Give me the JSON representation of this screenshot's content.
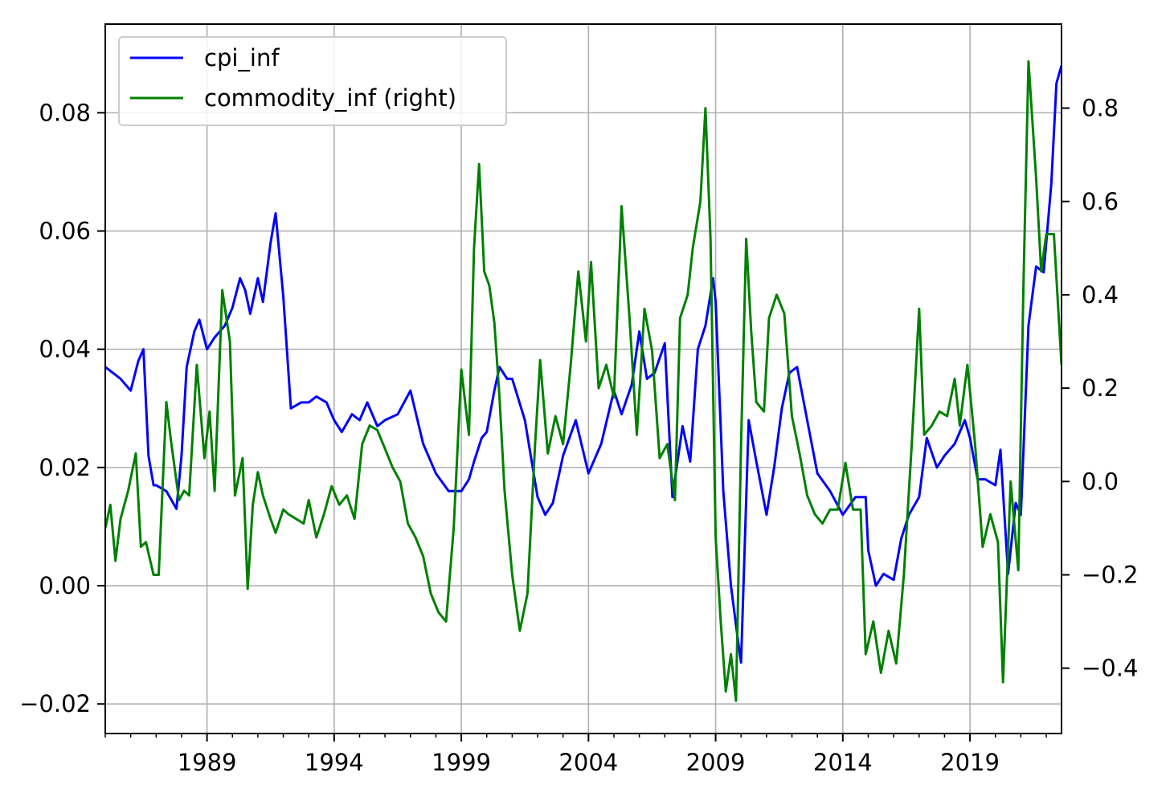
{
  "chart_data": {
    "type": "line",
    "title": "",
    "xlabel": "",
    "ylabel": "",
    "y2label": "",
    "xlim": [
      1985.0,
      2022.6
    ],
    "ylim": [
      -0.025,
      0.095
    ],
    "y2lim": [
      -0.54,
      0.98
    ],
    "x_ticks": [
      1989,
      1994,
      1999,
      2004,
      2009,
      2014,
      2019
    ],
    "x_tick_labels": [
      "1989",
      "1994",
      "1999",
      "2004",
      "2009",
      "2014",
      "2019"
    ],
    "y_ticks": [
      -0.02,
      0.0,
      0.02,
      0.04,
      0.06,
      0.08
    ],
    "y_tick_labels": [
      "−0.02",
      "0.00",
      "0.02",
      "0.04",
      "0.06",
      "0.08"
    ],
    "y2_ticks": [
      -0.4,
      -0.2,
      0.0,
      0.2,
      0.4,
      0.6,
      0.8
    ],
    "y2_tick_labels": [
      "−0.4",
      "−0.2",
      "0.0",
      "0.2",
      "0.4",
      "0.6",
      "0.8"
    ],
    "grid": true,
    "legend_position": "top-left",
    "series": [
      {
        "name": "cpi_inf",
        "axis": "left",
        "color": "#0000ff",
        "x": [
          1985.0,
          1985.3,
          1985.6,
          1986.0,
          1986.3,
          1986.5,
          1986.7,
          1986.9,
          1987.0,
          1987.4,
          1987.8,
          1988.0,
          1988.2,
          1988.5,
          1988.7,
          1989.0,
          1989.3,
          1989.7,
          1990.0,
          1990.3,
          1990.5,
          1990.7,
          1991.0,
          1991.2,
          1991.5,
          1991.7,
          1992.0,
          1992.3,
          1992.7,
          1993.0,
          1993.3,
          1993.7,
          1994.0,
          1994.3,
          1994.7,
          1995.0,
          1995.3,
          1995.7,
          1996.0,
          1996.5,
          1997.0,
          1997.5,
          1998.0,
          1998.5,
          1999.0,
          1999.3,
          1999.5,
          1999.8,
          2000.0,
          2000.3,
          2000.5,
          2000.8,
          2001.0,
          2001.5,
          2002.0,
          2002.3,
          2002.6,
          2003.0,
          2003.5,
          2004.0,
          2004.5,
          2005.0,
          2005.3,
          2005.7,
          2006.0,
          2006.3,
          2006.6,
          2007.0,
          2007.3,
          2007.7,
          2008.0,
          2008.3,
          2008.6,
          2008.9,
          2009.0,
          2009.3,
          2009.6,
          2009.9,
          2010.0,
          2010.3,
          2010.6,
          2011.0,
          2011.3,
          2011.6,
          2011.9,
          2012.2,
          2012.6,
          2013.0,
          2013.5,
          2014.0,
          2014.5,
          2014.9,
          2015.0,
          2015.3,
          2015.6,
          2016.0,
          2016.3,
          2016.6,
          2017.0,
          2017.3,
          2017.7,
          2018.0,
          2018.4,
          2018.8,
          2019.0,
          2019.3,
          2019.6,
          2020.0,
          2020.2,
          2020.5,
          2020.8,
          2021.0,
          2021.3,
          2021.6,
          2021.9,
          2022.2,
          2022.4,
          2022.6
        ],
        "values": [
          0.037,
          0.036,
          0.035,
          0.033,
          0.038,
          0.04,
          0.022,
          0.017,
          0.017,
          0.016,
          0.013,
          0.022,
          0.037,
          0.043,
          0.045,
          0.04,
          0.042,
          0.044,
          0.047,
          0.052,
          0.05,
          0.046,
          0.052,
          0.048,
          0.058,
          0.063,
          0.049,
          0.03,
          0.031,
          0.031,
          0.032,
          0.031,
          0.028,
          0.026,
          0.029,
          0.028,
          0.031,
          0.027,
          0.028,
          0.029,
          0.033,
          0.024,
          0.019,
          0.016,
          0.016,
          0.018,
          0.021,
          0.025,
          0.026,
          0.033,
          0.037,
          0.035,
          0.035,
          0.028,
          0.015,
          0.012,
          0.014,
          0.022,
          0.028,
          0.019,
          0.024,
          0.033,
          0.029,
          0.034,
          0.043,
          0.035,
          0.036,
          0.041,
          0.015,
          0.027,
          0.021,
          0.04,
          0.044,
          0.052,
          0.048,
          0.016,
          0.0,
          -0.01,
          -0.013,
          0.028,
          0.021,
          0.012,
          0.02,
          0.03,
          0.036,
          0.037,
          0.028,
          0.019,
          0.016,
          0.012,
          0.015,
          0.015,
          0.006,
          0.0,
          0.002,
          0.001,
          0.008,
          0.012,
          0.015,
          0.025,
          0.02,
          0.022,
          0.024,
          0.028,
          0.025,
          0.018,
          0.018,
          0.017,
          0.023,
          0.002,
          0.014,
          0.012,
          0.044,
          0.054,
          0.053,
          0.068,
          0.085,
          0.088
        ]
      },
      {
        "name": "commodity_inf",
        "axis": "right",
        "color": "#008000",
        "x": [
          1985.0,
          1985.2,
          1985.4,
          1985.6,
          1985.9,
          1986.2,
          1986.4,
          1986.6,
          1986.9,
          1987.1,
          1987.4,
          1987.6,
          1987.9,
          1988.1,
          1988.3,
          1988.6,
          1988.9,
          1989.1,
          1989.3,
          1989.6,
          1989.9,
          1990.1,
          1990.4,
          1990.6,
          1990.8,
          1991.0,
          1991.2,
          1991.5,
          1991.7,
          1992.0,
          1992.2,
          1992.5,
          1992.8,
          1993.0,
          1993.3,
          1993.6,
          1993.9,
          1994.2,
          1994.5,
          1994.8,
          1995.1,
          1995.4,
          1995.7,
          1996.0,
          1996.3,
          1996.6,
          1996.9,
          1997.2,
          1997.5,
          1997.8,
          1998.1,
          1998.4,
          1998.7,
          1999.0,
          1999.3,
          1999.5,
          1999.7,
          1999.9,
          2000.1,
          2000.3,
          2000.5,
          2000.7,
          2001.0,
          2001.3,
          2001.6,
          2001.9,
          2002.1,
          2002.4,
          2002.7,
          2003.0,
          2003.3,
          2003.6,
          2003.9,
          2004.1,
          2004.4,
          2004.7,
          2005.0,
          2005.3,
          2005.6,
          2005.9,
          2006.2,
          2006.5,
          2006.8,
          2007.1,
          2007.4,
          2007.6,
          2007.9,
          2008.1,
          2008.4,
          2008.6,
          2008.8,
          2009.0,
          2009.2,
          2009.4,
          2009.6,
          2009.8,
          2010.0,
          2010.2,
          2010.4,
          2010.6,
          2010.9,
          2011.1,
          2011.4,
          2011.7,
          2012.0,
          2012.3,
          2012.6,
          2012.9,
          2013.2,
          2013.5,
          2013.8,
          2014.1,
          2014.4,
          2014.7,
          2014.9,
          2015.2,
          2015.5,
          2015.8,
          2016.1,
          2016.4,
          2016.7,
          2017.0,
          2017.2,
          2017.5,
          2017.8,
          2018.1,
          2018.4,
          2018.6,
          2018.9,
          2019.2,
          2019.5,
          2019.8,
          2020.1,
          2020.3,
          2020.6,
          2020.9,
          2021.1,
          2021.3,
          2021.6,
          2021.8,
          2022.0,
          2022.3,
          2022.6
        ],
        "values": [
          -0.1,
          -0.05,
          -0.17,
          -0.08,
          -0.02,
          0.06,
          -0.14,
          -0.13,
          -0.2,
          -0.2,
          0.17,
          0.08,
          -0.04,
          -0.02,
          -0.03,
          0.25,
          0.05,
          0.15,
          -0.02,
          0.41,
          0.3,
          -0.03,
          0.05,
          -0.23,
          -0.05,
          0.02,
          -0.03,
          -0.08,
          -0.11,
          -0.06,
          -0.07,
          -0.08,
          -0.09,
          -0.04,
          -0.12,
          -0.07,
          -0.01,
          -0.05,
          -0.03,
          -0.08,
          0.08,
          0.12,
          0.11,
          0.07,
          0.03,
          0.0,
          -0.09,
          -0.12,
          -0.16,
          -0.24,
          -0.28,
          -0.3,
          -0.1,
          0.24,
          0.1,
          0.5,
          0.68,
          0.45,
          0.42,
          0.34,
          0.18,
          -0.02,
          -0.2,
          -0.32,
          -0.24,
          0.08,
          0.26,
          0.06,
          0.14,
          0.08,
          0.25,
          0.45,
          0.3,
          0.47,
          0.2,
          0.25,
          0.18,
          0.59,
          0.36,
          0.1,
          0.37,
          0.28,
          0.05,
          0.08,
          -0.04,
          0.35,
          0.4,
          0.5,
          0.6,
          0.8,
          0.52,
          -0.12,
          -0.3,
          -0.45,
          -0.37,
          -0.47,
          0.08,
          0.52,
          0.32,
          0.17,
          0.15,
          0.35,
          0.4,
          0.36,
          0.14,
          0.06,
          -0.03,
          -0.07,
          -0.09,
          -0.06,
          -0.06,
          0.04,
          -0.06,
          -0.06,
          -0.37,
          -0.3,
          -0.41,
          -0.32,
          -0.39,
          -0.2,
          0.07,
          0.37,
          0.1,
          0.12,
          0.15,
          0.14,
          0.22,
          0.12,
          0.25,
          0.08,
          -0.14,
          -0.07,
          -0.13,
          -0.43,
          0.0,
          -0.19,
          0.41,
          0.9,
          0.65,
          0.45,
          0.53,
          0.53,
          0.25
        ]
      }
    ]
  }
}
